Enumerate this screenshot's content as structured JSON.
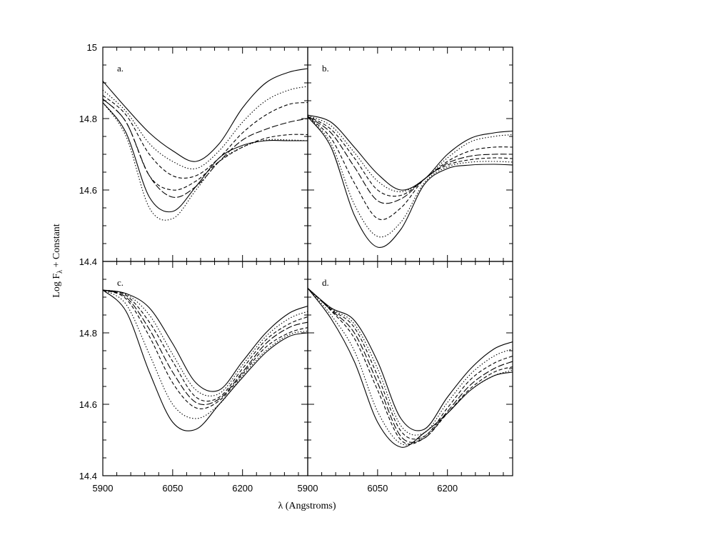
{
  "chart_data": {
    "type": "line",
    "ylabel_main": "Log F",
    "ylabel_sub": "λ",
    "ylabel_rest": " + Constant",
    "xlabel": "λ (Angstroms)",
    "xlim": [
      5900,
      6340
    ],
    "ylim": [
      14.4,
      15.0
    ],
    "x_ticks": [
      "5900",
      "6050",
      "6200"
    ],
    "y_ticks_top": [
      "15",
      "14.8",
      "14.6",
      "14.4"
    ],
    "y_ticks_bottom": [
      "14.8",
      "14.6",
      "14.4"
    ],
    "dash_styles": [
      "solid",
      "dotted",
      "dashed",
      "longdash",
      "dashed",
      "dotted",
      "solid"
    ],
    "panels": [
      {
        "label": "a.",
        "x": [
          5900,
          5950,
          6000,
          6050,
          6100,
          6150,
          6200,
          6250,
          6300,
          6340
        ],
        "series": [
          {
            "values": [
              14.905,
              14.83,
              14.76,
              14.71,
              14.68,
              14.73,
              14.83,
              14.9,
              14.93,
              14.94
            ]
          },
          {
            "values": [
              14.88,
              14.82,
              14.73,
              14.68,
              14.66,
              14.71,
              14.79,
              14.85,
              14.88,
              14.89
            ]
          },
          {
            "values": [
              14.865,
              14.81,
              14.7,
              14.64,
              14.64,
              14.69,
              14.76,
              14.81,
              14.84,
              14.845
            ]
          },
          {
            "values": [
              14.855,
              14.79,
              14.64,
              14.58,
              14.61,
              14.68,
              14.74,
              14.77,
              14.79,
              14.8
            ]
          },
          {
            "values": [
              14.855,
              14.79,
              14.64,
              14.6,
              14.625,
              14.68,
              14.72,
              14.745,
              14.755,
              14.755
            ]
          },
          {
            "values": [
              14.845,
              14.75,
              14.55,
              14.52,
              14.6,
              14.68,
              14.72,
              14.74,
              14.74,
              14.738
            ]
          },
          {
            "values": [
              14.845,
              14.76,
              14.58,
              14.54,
              14.61,
              14.69,
              14.725,
              14.738,
              14.738,
              14.738
            ]
          }
        ]
      },
      {
        "label": "b.",
        "x": [
          5900,
          5950,
          6000,
          6050,
          6100,
          6150,
          6200,
          6250,
          6300,
          6340
        ],
        "series": [
          {
            "values": [
              14.81,
              14.79,
              14.72,
              14.645,
              14.6,
              14.63,
              14.7,
              14.745,
              14.76,
              14.765
            ]
          },
          {
            "values": [
              14.808,
              14.78,
              14.705,
              14.625,
              14.595,
              14.63,
              14.69,
              14.735,
              14.75,
              14.755
            ]
          },
          {
            "values": [
              14.806,
              14.77,
              14.69,
              14.6,
              14.585,
              14.63,
              14.68,
              14.71,
              14.72,
              14.72
            ]
          },
          {
            "values": [
              14.805,
              14.76,
              14.665,
              14.57,
              14.575,
              14.63,
              14.675,
              14.695,
              14.7,
              14.7
            ]
          },
          {
            "values": [
              14.805,
              14.745,
              14.62,
              14.52,
              14.55,
              14.63,
              14.67,
              14.685,
              14.69,
              14.688
            ]
          },
          {
            "values": [
              14.805,
              14.73,
              14.56,
              14.47,
              14.51,
              14.62,
              14.665,
              14.678,
              14.68,
              14.678
            ]
          },
          {
            "values": [
              14.805,
              14.72,
              14.53,
              14.44,
              14.49,
              14.615,
              14.66,
              14.67,
              14.672,
              14.67
            ]
          }
        ]
      },
      {
        "label": "c.",
        "x": [
          5900,
          5950,
          6000,
          6050,
          6100,
          6150,
          6200,
          6250,
          6300,
          6340
        ],
        "series": [
          {
            "values": [
              14.92,
              14.91,
              14.87,
              14.77,
              14.66,
              14.64,
              14.72,
              14.8,
              14.855,
              14.875
            ]
          },
          {
            "values": [
              14.92,
              14.908,
              14.85,
              14.74,
              14.64,
              14.63,
              14.71,
              14.79,
              14.84,
              14.86
            ]
          },
          {
            "values": [
              14.92,
              14.905,
              14.83,
              14.72,
              14.62,
              14.62,
              14.7,
              14.78,
              14.825,
              14.845
            ]
          },
          {
            "values": [
              14.92,
              14.9,
              14.81,
              14.69,
              14.605,
              14.615,
              14.69,
              14.77,
              14.815,
              14.83
            ]
          },
          {
            "values": [
              14.92,
              14.895,
              14.79,
              14.66,
              14.59,
              14.61,
              14.685,
              14.76,
              14.8,
              14.815
            ]
          },
          {
            "values": [
              14.92,
              14.88,
              14.74,
              14.6,
              14.56,
              14.6,
              14.68,
              14.75,
              14.795,
              14.805
            ]
          },
          {
            "values": [
              14.92,
              14.86,
              14.69,
              14.55,
              14.53,
              14.6,
              14.675,
              14.745,
              14.79,
              14.8
            ]
          }
        ]
      },
      {
        "label": "d.",
        "x": [
          5900,
          5950,
          6000,
          6050,
          6100,
          6150,
          6200,
          6250,
          6300,
          6340
        ],
        "series": [
          {
            "values": [
              14.925,
              14.87,
              14.835,
              14.72,
              14.56,
              14.53,
              14.62,
              14.7,
              14.755,
              14.775
            ]
          },
          {
            "values": [
              14.925,
              14.868,
              14.825,
              14.7,
              14.54,
              14.52,
              14.605,
              14.685,
              14.735,
              14.755
            ]
          },
          {
            "values": [
              14.925,
              14.866,
              14.815,
              14.68,
              14.525,
              14.51,
              14.59,
              14.67,
              14.715,
              14.735
            ]
          },
          {
            "values": [
              14.925,
              14.864,
              14.8,
              14.66,
              14.51,
              14.505,
              14.58,
              14.655,
              14.7,
              14.72
            ]
          },
          {
            "values": [
              14.925,
              14.862,
              14.785,
              14.64,
              14.5,
              14.505,
              14.575,
              14.645,
              14.69,
              14.705
            ]
          },
          {
            "values": [
              14.925,
              14.85,
              14.75,
              14.58,
              14.49,
              14.51,
              14.575,
              14.64,
              14.68,
              14.695
            ]
          },
          {
            "values": [
              14.925,
              14.84,
              14.72,
              14.55,
              14.48,
              14.52,
              14.575,
              14.64,
              14.68,
              14.69
            ]
          }
        ]
      }
    ]
  }
}
